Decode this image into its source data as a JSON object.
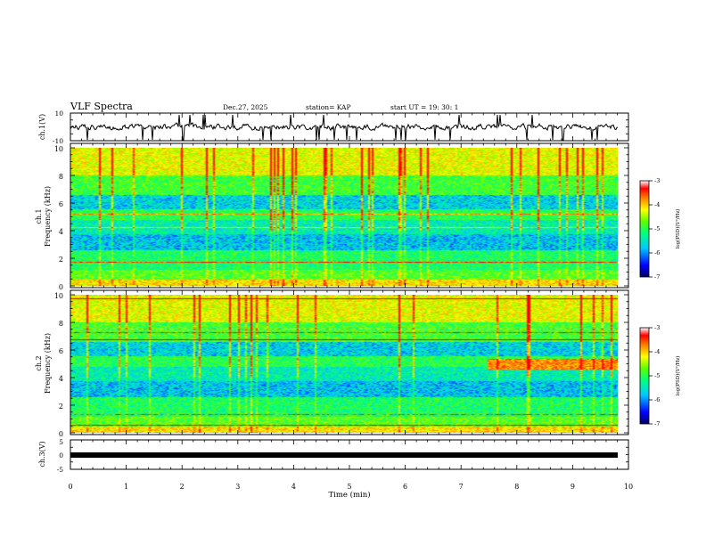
{
  "header": {
    "title": "VLF Spectra",
    "date": "Dec.27, 2025",
    "station": "station= KAP",
    "start_time": "start  UT =   19: 30: 1"
  },
  "chart_data": [
    {
      "id": "ch1-waveform",
      "type": "line",
      "ylabel": "ch.1(V)",
      "ylim": [
        -10,
        10
      ],
      "y_ticks": [
        "10",
        "-10"
      ],
      "x_range_min": [
        0,
        9.83
      ]
    },
    {
      "id": "ch1-spectrogram",
      "type": "heatmap",
      "ylabel_line1": "ch.1",
      "ylabel_line2": "Frequency (kHz)",
      "ylim": [
        0,
        10
      ],
      "y_ticks": [
        "0",
        "2",
        "4",
        "6",
        "8",
        "10"
      ],
      "x_range_min": [
        0,
        9.83
      ],
      "colorbar": {
        "label": "log(PSD)(V²/Hz)",
        "range": [
          -7,
          -3
        ],
        "ticks": [
          "-3",
          "-4",
          "-5",
          "-6",
          "-7"
        ]
      }
    },
    {
      "id": "ch2-spectrogram",
      "type": "heatmap",
      "ylabel_line1": "ch.2",
      "ylabel_line2": "Frequency (kHz)",
      "ylim": [
        0,
        10
      ],
      "y_ticks": [
        "0",
        "2",
        "4",
        "6",
        "8",
        "10"
      ],
      "x_range_min": [
        0,
        9.83
      ],
      "colorbar": {
        "label": "log(PSD)(V²/Hz)",
        "range": [
          -7,
          -3
        ],
        "ticks": [
          "-3",
          "-4",
          "-5",
          "-6",
          "-7"
        ]
      }
    },
    {
      "id": "ch3-waveform",
      "type": "line",
      "ylabel": "ch.3(V)",
      "ylim": [
        -5,
        5
      ],
      "y_ticks": [
        "5",
        "0",
        "-5"
      ],
      "x_range_min": [
        0,
        9.83
      ]
    }
  ],
  "x_axis": {
    "label": "Time  (min)",
    "range": [
      0,
      10
    ],
    "ticks": [
      "0",
      "1",
      "2",
      "3",
      "4",
      "5",
      "6",
      "7",
      "8",
      "9",
      "10"
    ]
  },
  "colors": {
    "scale": [
      "#000080",
      "#0000ff",
      "#00c0ff",
      "#00ff80",
      "#80ff00",
      "#ffff00",
      "#ff8000",
      "#ff0000",
      "#ffffff"
    ]
  }
}
